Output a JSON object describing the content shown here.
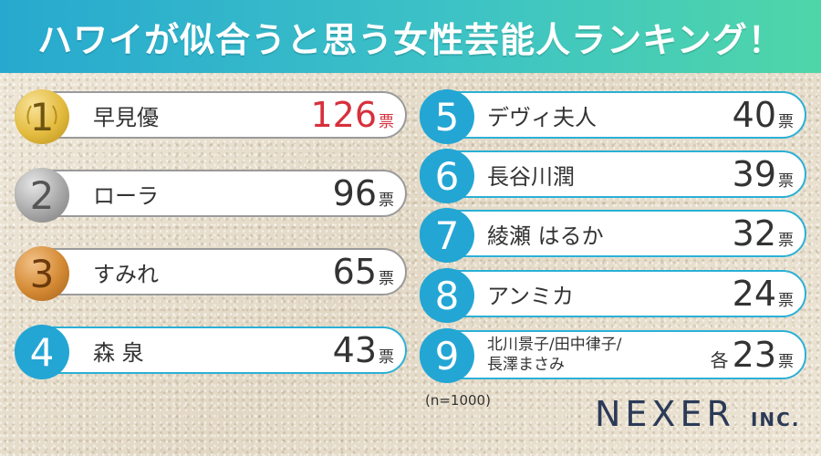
{
  "header": {
    "title": "ハワイが似合うと思う女性芸能人ランキング！"
  },
  "ranking": [
    {
      "rank": "1",
      "name": "早見優",
      "votes": "126",
      "unit": "票",
      "prefix": ""
    },
    {
      "rank": "2",
      "name": "ローラ",
      "votes": "96",
      "unit": "票",
      "prefix": ""
    },
    {
      "rank": "3",
      "name": "すみれ",
      "votes": "65",
      "unit": "票",
      "prefix": ""
    },
    {
      "rank": "4",
      "name": "森 泉",
      "votes": "43",
      "unit": "票",
      "prefix": ""
    },
    {
      "rank": "5",
      "name": "デヴィ夫人",
      "votes": "40",
      "unit": "票",
      "prefix": ""
    },
    {
      "rank": "6",
      "name": "長谷川潤",
      "votes": "39",
      "unit": "票",
      "prefix": ""
    },
    {
      "rank": "7",
      "name": "綾瀬 はるか",
      "votes": "32",
      "unit": "票",
      "prefix": ""
    },
    {
      "rank": "8",
      "name": "アンミカ",
      "votes": "24",
      "unit": "票",
      "prefix": ""
    },
    {
      "rank": "9",
      "name_line1": "北川景子/田中律子/",
      "name_line2": "長澤まさみ",
      "votes": "23",
      "unit": "票",
      "prefix": "各"
    }
  ],
  "footer": {
    "sample_size": "(n=1000)",
    "logo_main": "NEXER",
    "logo_suffix": "INC."
  },
  "colors": {
    "accent_blue": "#23a6d4",
    "highlight_red": "#d7303c",
    "gold": "#e3bb3e",
    "silver": "#a8a8a8",
    "bronze": "#d48a34"
  }
}
